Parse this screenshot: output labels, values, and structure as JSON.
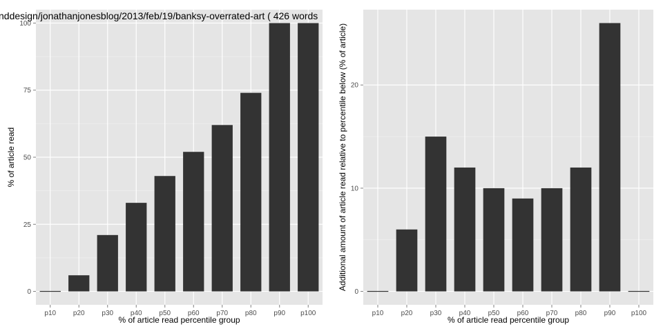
{
  "chart_data": [
    {
      "type": "bar",
      "title": "nddesign/jonathanjonesblog/2013/feb/19/banksy-overrated-art ( 426 words",
      "xlabel": "% of article read percentile group",
      "ylabel": "% of article read",
      "categories": [
        "p10",
        "p20",
        "p30",
        "p40",
        "p50",
        "p60",
        "p70",
        "p80",
        "p90",
        "p100"
      ],
      "values": [
        0,
        6,
        21,
        33,
        43,
        52,
        62,
        74,
        100,
        100
      ],
      "ylim": [
        -5,
        105
      ],
      "yticks": [
        0,
        25,
        50,
        75,
        100
      ],
      "grid": true,
      "bar_color": "#333333",
      "panel_color": "#e5e5e5"
    },
    {
      "type": "bar",
      "title": "",
      "xlabel": "% of article read percentile group",
      "ylabel": "Additional amount of article read relative to percentile below (% of article)",
      "categories": [
        "p10",
        "p20",
        "p30",
        "p40",
        "p50",
        "p60",
        "p70",
        "p80",
        "p90",
        "p100"
      ],
      "values": [
        0,
        6,
        15,
        12,
        10,
        9,
        10,
        12,
        26,
        0
      ],
      "ylim": [
        -1.3,
        27.3
      ],
      "yticks": [
        0,
        10,
        20
      ],
      "grid": true,
      "bar_color": "#333333",
      "panel_color": "#e5e5e5"
    }
  ]
}
